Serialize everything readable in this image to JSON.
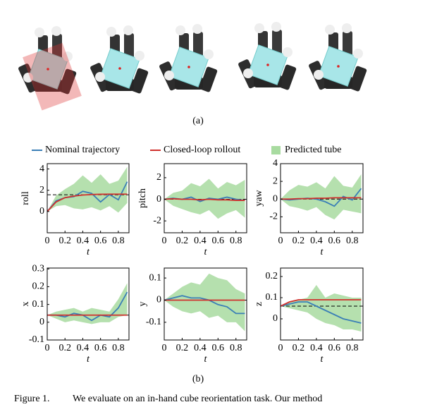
{
  "panel_labels": [
    "(a)",
    "(b)"
  ],
  "caption": {
    "label": "Figure 1.",
    "text": "We evaluate on an in-hand cube reorientation task. Our method"
  },
  "chart_data": [
    {
      "type": "line",
      "ylabel": "roll",
      "xlabel": "t",
      "x": [
        0,
        0.1,
        0.2,
        0.3,
        0.4,
        0.5,
        0.6,
        0.7,
        0.8,
        0.9
      ],
      "xlim": [
        0,
        0.92
      ],
      "xticks": [
        0,
        0.2,
        0.4,
        0.6,
        0.8
      ],
      "ylim": [
        -2,
        4.5
      ],
      "yticks": [
        0,
        2,
        4
      ],
      "reference": 1.57,
      "series": [
        {
          "name": "Nominal trajectory",
          "color": "#3b7fb6",
          "values": [
            0,
            1.0,
            1.3,
            1.4,
            1.9,
            1.7,
            0.9,
            1.6,
            1.1,
            2.8
          ]
        },
        {
          "name": "Closed-loop rollout",
          "color": "#d0312d",
          "values": [
            0,
            0.9,
            1.3,
            1.45,
            1.55,
            1.6,
            1.62,
            1.63,
            1.63,
            1.63
          ]
        },
        {
          "name": "Predicted tube",
          "color": "#a8dba0",
          "lower": [
            0,
            0.5,
            0.6,
            0.3,
            0.2,
            0.4,
            0.1,
            0.5,
            -0.1,
            0.8
          ],
          "upper": [
            0,
            1.5,
            2.1,
            2.6,
            3.4,
            2.7,
            3.5,
            2.6,
            2.9,
            4.2
          ]
        }
      ]
    },
    {
      "type": "line",
      "ylabel": "pitch",
      "xlabel": "t",
      "x": [
        0,
        0.1,
        0.2,
        0.3,
        0.4,
        0.5,
        0.6,
        0.7,
        0.8,
        0.9
      ],
      "xlim": [
        0,
        0.92
      ],
      "xticks": [
        0,
        0.2,
        0.4,
        0.6,
        0.8
      ],
      "ylim": [
        -3.1,
        3.3
      ],
      "yticks": [
        -2,
        0,
        2
      ],
      "reference": 0,
      "series": [
        {
          "name": "Nominal trajectory",
          "color": "#3b7fb6",
          "values": [
            0,
            0.1,
            0,
            0.2,
            -0.2,
            0.1,
            0,
            0.2,
            0,
            -0.1
          ]
        },
        {
          "name": "Closed-loop rollout",
          "color": "#d0312d",
          "values": [
            0,
            0.05,
            0,
            0,
            -0.05,
            0,
            -0.05,
            -0.05,
            -0.1,
            -0.1
          ]
        },
        {
          "name": "Predicted tube",
          "color": "#a8dba0",
          "lower": [
            0,
            -0.6,
            -0.9,
            -1.2,
            -1.4,
            -1.0,
            -1.8,
            -1.3,
            -1.0,
            -1.7
          ],
          "upper": [
            0,
            0.6,
            0.8,
            1.5,
            1.2,
            1.9,
            1.0,
            1.6,
            1.3,
            1.8
          ]
        }
      ]
    },
    {
      "type": "line",
      "ylabel": "yaw",
      "xlabel": "t",
      "x": [
        0,
        0.1,
        0.2,
        0.3,
        0.4,
        0.5,
        0.6,
        0.7,
        0.8,
        0.9
      ],
      "xlim": [
        0,
        0.92
      ],
      "xticks": [
        0,
        0.2,
        0.4,
        0.6,
        0.8
      ],
      "ylim": [
        -3.8,
        4
      ],
      "yticks": [
        -2,
        0,
        2,
        4
      ],
      "reference": 0,
      "series": [
        {
          "name": "Nominal trajectory",
          "color": "#3b7fb6",
          "values": [
            0,
            -0.1,
            0,
            0.1,
            0,
            -0.3,
            -0.8,
            0.3,
            -0.1,
            1.2
          ]
        },
        {
          "name": "Closed-loop rollout",
          "color": "#d0312d",
          "values": [
            0,
            0,
            0.05,
            0.05,
            0.1,
            0.1,
            0.15,
            0.15,
            0.15,
            0.15
          ]
        },
        {
          "name": "Predicted tube",
          "color": "#a8dba0",
          "lower": [
            0,
            -0.8,
            -1.0,
            -1.3,
            -0.9,
            -1.8,
            -2.3,
            -1.2,
            -1.4,
            -1.6
          ],
          "upper": [
            0,
            1.0,
            1.6,
            1.4,
            1.9,
            1.2,
            2.6,
            1.5,
            1.3,
            2.8
          ]
        }
      ]
    },
    {
      "type": "line",
      "ylabel": "x",
      "xlabel": "t",
      "x": [
        0,
        0.1,
        0.2,
        0.3,
        0.4,
        0.5,
        0.6,
        0.7,
        0.8,
        0.9
      ],
      "xlim": [
        0,
        0.92
      ],
      "xticks": [
        0,
        0.2,
        0.4,
        0.6,
        0.8
      ],
      "ylim": [
        -0.1,
        0.305
      ],
      "yticks": [
        -0.1,
        0,
        0.1,
        0.2,
        0.3
      ],
      "reference": 0.04,
      "series": [
        {
          "name": "Nominal trajectory",
          "color": "#3b7fb6",
          "values": [
            0.04,
            0.04,
            0.03,
            0.05,
            0.04,
            0.01,
            0.04,
            0.03,
            0.08,
            0.17
          ]
        },
        {
          "name": "Closed-loop rollout",
          "color": "#d0312d",
          "values": [
            0.04,
            0.04,
            0.04,
            0.04,
            0.04,
            0.04,
            0.04,
            0.04,
            0.04,
            0.04
          ]
        },
        {
          "name": "Predicted tube",
          "color": "#a8dba0",
          "lower": [
            0.04,
            0.02,
            0.0,
            0.01,
            0.0,
            -0.01,
            0.0,
            0.0,
            0.03,
            0.04
          ],
          "upper": [
            0.04,
            0.06,
            0.07,
            0.08,
            0.06,
            0.08,
            0.07,
            0.06,
            0.13,
            0.22
          ]
        }
      ]
    },
    {
      "type": "line",
      "ylabel": "y",
      "xlabel": "t",
      "x": [
        0,
        0.1,
        0.2,
        0.3,
        0.4,
        0.5,
        0.6,
        0.7,
        0.8,
        0.9
      ],
      "xlim": [
        0,
        0.92
      ],
      "xticks": [
        0,
        0.2,
        0.4,
        0.6,
        0.8
      ],
      "ylim": [
        -0.18,
        0.145
      ],
      "yticks": [
        -0.1,
        0,
        0.1
      ],
      "reference": 0,
      "series": [
        {
          "name": "Nominal trajectory",
          "color": "#3b7fb6",
          "values": [
            0,
            0.01,
            0.02,
            0.01,
            0.01,
            0,
            -0.02,
            -0.03,
            -0.06,
            -0.06
          ]
        },
        {
          "name": "Closed-loop rollout",
          "color": "#d0312d",
          "values": [
            0,
            0,
            0,
            0,
            0,
            0,
            0,
            0,
            0,
            0
          ]
        },
        {
          "name": "Predicted tube",
          "color": "#a8dba0",
          "lower": [
            0,
            -0.03,
            -0.05,
            -0.06,
            -0.05,
            -0.08,
            -0.07,
            -0.1,
            -0.1,
            -0.14
          ],
          "upper": [
            0,
            0.03,
            0.06,
            0.08,
            0.07,
            0.12,
            0.1,
            0.09,
            0.05,
            0.03
          ]
        }
      ]
    },
    {
      "type": "line",
      "ylabel": "z",
      "xlabel": "t",
      "x": [
        0,
        0.1,
        0.2,
        0.3,
        0.4,
        0.5,
        0.6,
        0.7,
        0.8,
        0.9
      ],
      "xlim": [
        0,
        0.92
      ],
      "xticks": [
        0,
        0.2,
        0.4,
        0.6,
        0.8
      ],
      "ylim": [
        -0.1,
        0.24
      ],
      "yticks": [
        0,
        0.1,
        0.2
      ],
      "reference": 0.06,
      "series": [
        {
          "name": "Nominal trajectory",
          "color": "#3b7fb6",
          "values": [
            0.06,
            0.07,
            0.08,
            0.08,
            0.06,
            0.04,
            0.02,
            0.0,
            -0.01,
            -0.02
          ]
        },
        {
          "name": "Closed-loop rollout",
          "color": "#d0312d",
          "values": [
            0.06,
            0.08,
            0.09,
            0.09,
            0.09,
            0.09,
            0.09,
            0.09,
            0.09,
            0.09
          ]
        },
        {
          "name": "Predicted tube",
          "color": "#a8dba0",
          "lower": [
            0.06,
            0.05,
            0.04,
            0.03,
            0.0,
            -0.02,
            -0.03,
            -0.05,
            -0.05,
            -0.06
          ],
          "upper": [
            0.06,
            0.08,
            0.09,
            0.1,
            0.16,
            0.1,
            0.12,
            0.11,
            0.1,
            0.1
          ]
        }
      ]
    }
  ]
}
